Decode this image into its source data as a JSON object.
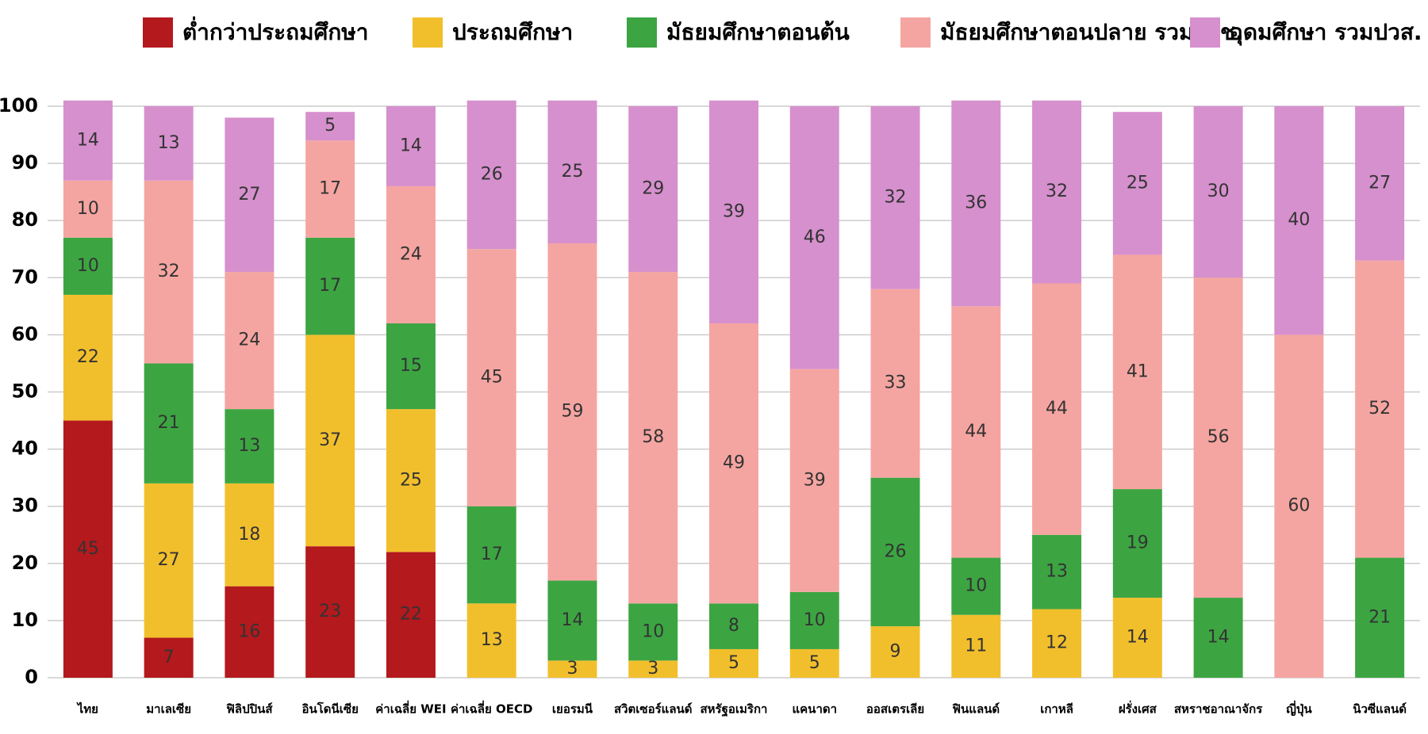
{
  "chart_data": {
    "type": "stacked_bar",
    "categories": [
      "ไทย",
      "มาเลเซีย",
      "ฟิลิปปินส์",
      "อินโดนีเซีย",
      "ค่าเฉลี่ย WEI",
      "ค่าเฉลี่ย OECD",
      "เยอรมนี",
      "สวิตเซอร์แลนด์",
      "สหรัฐอเมริกา",
      "แคนาดา",
      "ออสเตรเลีย",
      "ฟินแลนด์",
      "เกาหลี",
      "ฝรั่งเศส",
      "สหราชอาณาจักร",
      "ญี่ปุ่น",
      "นิวซีแลนด์"
    ],
    "series": [
      {
        "name": "ต่ำกว่าประถมศึกษา",
        "color": "#b3191d",
        "values": [
          45,
          7,
          16,
          23,
          22,
          0,
          0,
          0,
          0,
          0,
          0,
          0,
          0,
          0,
          0,
          0,
          0
        ]
      },
      {
        "name": "ประถมศึกษา",
        "color": "#f2bf2c",
        "values": [
          22,
          27,
          18,
          37,
          25,
          13,
          3,
          3,
          5,
          5,
          9,
          11,
          12,
          14,
          0,
          0,
          0
        ]
      },
      {
        "name": "มัธยมศึกษาตอนต้น",
        "color": "#3ca542",
        "values": [
          10,
          21,
          13,
          17,
          15,
          17,
          14,
          10,
          8,
          10,
          26,
          10,
          13,
          19,
          14,
          0,
          21
        ]
      },
      {
        "name": "มัธยมศึกษาตอนปลาย รวมปวช.",
        "color": "#f5a5a1",
        "values": [
          10,
          32,
          24,
          17,
          24,
          45,
          59,
          58,
          49,
          39,
          33,
          44,
          44,
          41,
          56,
          60,
          52
        ]
      },
      {
        "name": "อุดมศึกษา รวมปวส.",
        "color": "#d690cd",
        "values": [
          14,
          13,
          27,
          5,
          14,
          26,
          25,
          29,
          39,
          46,
          32,
          36,
          32,
          25,
          30,
          40,
          27
        ]
      }
    ],
    "ylim": [
      0,
      100
    ],
    "yticks": [
      0,
      10,
      20,
      30,
      40,
      50,
      60,
      70,
      80,
      90,
      100
    ],
    "grid": true
  }
}
